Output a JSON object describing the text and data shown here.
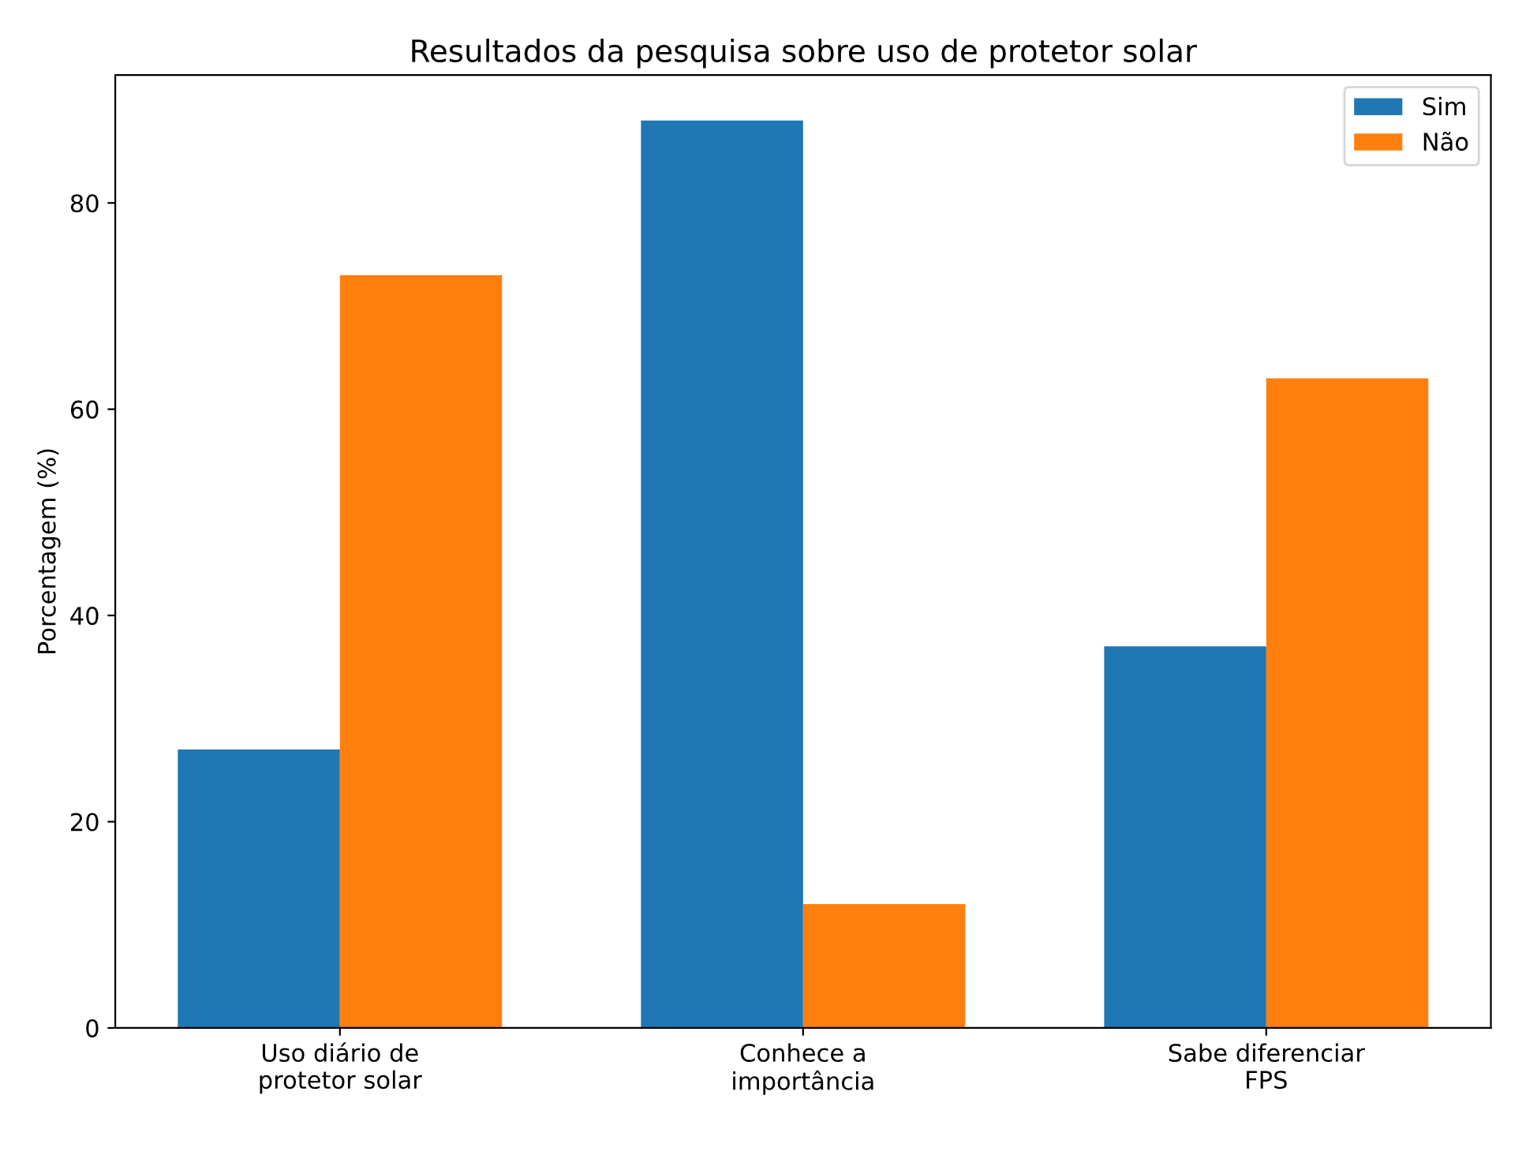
{
  "chart_data": {
    "type": "bar",
    "title": "Resultados da pesquisa sobre uso de protetor solar",
    "ylabel": "Porcentagem (%)",
    "categories": [
      "Uso diário de\nprotetor solar",
      "Conhece a\nimportância",
      "Sabe diferenciar\nFPS"
    ],
    "series": [
      {
        "name": "Sim",
        "color": "#1f77b4",
        "values": [
          27,
          88,
          37
        ]
      },
      {
        "name": "Não",
        "color": "#ff7f0e",
        "values": [
          73,
          12,
          63
        ]
      }
    ],
    "ylim": [
      0,
      92.4
    ],
    "yticks": [
      0,
      20,
      40,
      60,
      80
    ],
    "grid": false,
    "legend": "top right"
  }
}
